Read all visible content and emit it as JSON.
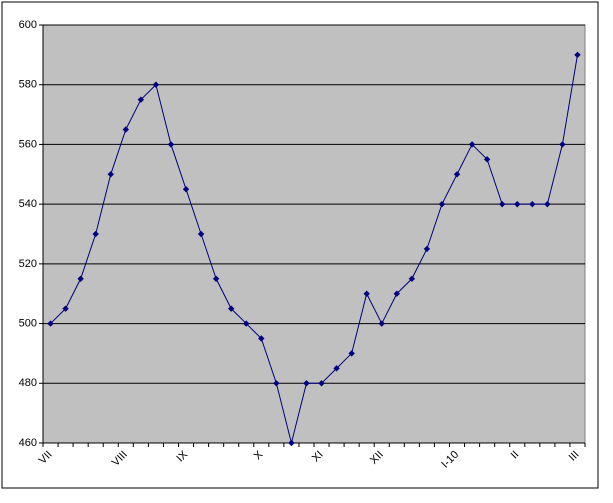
{
  "chart_data": {
    "type": "line",
    "categories": [
      "VII",
      null,
      null,
      null,
      null,
      "VIII",
      null,
      null,
      null,
      "IX",
      null,
      null,
      null,
      null,
      "X",
      null,
      null,
      null,
      "XI",
      null,
      null,
      null,
      "XII",
      null,
      null,
      null,
      null,
      "I-10",
      null,
      null,
      null,
      "II",
      null,
      null,
      null,
      "III"
    ],
    "values": [
      500,
      505,
      515,
      530,
      550,
      565,
      575,
      580,
      560,
      545,
      530,
      515,
      505,
      500,
      495,
      480,
      460,
      480,
      480,
      485,
      490,
      510,
      500,
      510,
      515,
      525,
      540,
      550,
      560,
      555,
      540,
      540,
      540,
      540,
      560,
      590
    ],
    "color": "#000080",
    "ylim": [
      460,
      600
    ],
    "yticks": [
      460,
      480,
      500,
      520,
      540,
      560,
      580,
      600
    ],
    "grid": true
  }
}
